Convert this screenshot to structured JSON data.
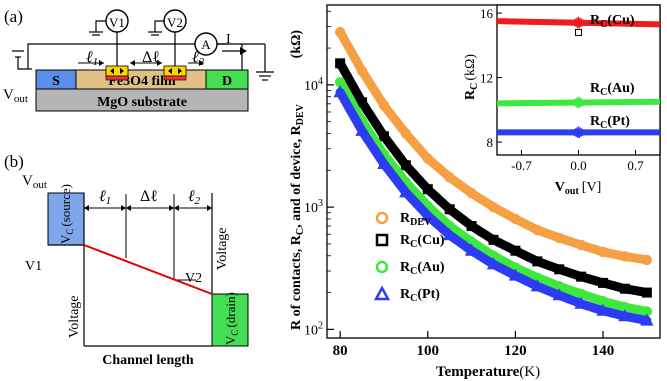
{
  "panel_a": {
    "label": "(a)",
    "v1": "V1",
    "v2": "V2",
    "ammeter": "A",
    "current": "I",
    "source": "S",
    "drain": "D",
    "vout": "V",
    "vout_sub": "out",
    "l1": "ℓ",
    "l1_sub": "1",
    "dl": "Δℓ",
    "l2": "ℓ",
    "l2_sub": "2",
    "film": "Fe3O4 film",
    "substrate": "MgO substrate"
  },
  "panel_b": {
    "label": "(b)",
    "vout": "V",
    "vout_sub": "out",
    "l1": "ℓ",
    "l1_sub": "1",
    "dl": "Δℓ",
    "l2": "ℓ",
    "l2_sub": "2",
    "vc_source": "V",
    "vc_source_sub": "C",
    "vc_source_note": "(source)",
    "vc_drain": "V",
    "vc_drain_sub": "C",
    "vc_drain_note": "(drain)",
    "v1": "V1",
    "v2": "V2",
    "voltage_left": "Voltage",
    "voltage_right": "Voltage",
    "xlabel": "Channel length"
  },
  "chart_data": [
    {
      "type": "line",
      "ylabel": "R of contacts, R",
      "ylabel_sub1": "C",
      "ylabel_mid": ", and of device, R",
      "ylabel_sub2": "DEV",
      "unit": "(kΩ)",
      "xlabel": "Temperature",
      "xunit": "(K)",
      "yscale": "log",
      "xlim": [
        77,
        153
      ],
      "ylim": [
        85,
        45000
      ],
      "xticks": [
        80,
        100,
        120,
        140
      ],
      "yticks": [
        {
          "value": 100,
          "base": "10",
          "exp": "2"
        },
        {
          "value": 1000,
          "base": "10",
          "exp": "3"
        },
        {
          "value": 10000,
          "base": "10",
          "exp": "4"
        }
      ],
      "legend_position": "center-right",
      "series": [
        {
          "name": "R",
          "sub": "DEV",
          "marker": "circle",
          "color": "#f5a143",
          "x": [
            80,
            85,
            90,
            95,
            100,
            105,
            110,
            115,
            120,
            125,
            130,
            135,
            140,
            145,
            150
          ],
          "y": [
            27000,
            13000,
            6800,
            4000,
            2500,
            1750,
            1300,
            1000,
            800,
            650,
            560,
            490,
            430,
            395,
            370
          ]
        },
        {
          "name": "R",
          "sub": "C",
          "suffix": "(Cu)",
          "marker": "square",
          "color": "#000000",
          "x": [
            80,
            85,
            90,
            95,
            100,
            105,
            110,
            115,
            120,
            125,
            130,
            135,
            140,
            145,
            150
          ],
          "y": [
            15000,
            7200,
            3800,
            2200,
            1400,
            960,
            700,
            540,
            440,
            360,
            310,
            270,
            240,
            215,
            200
          ]
        },
        {
          "name": "R",
          "sub": "C",
          "suffix": "(Au)",
          "marker": "circle",
          "color": "#3fe83f",
          "x": [
            80,
            85,
            90,
            95,
            100,
            105,
            110,
            115,
            120,
            125,
            130,
            135,
            140,
            145,
            150
          ],
          "y": [
            10500,
            5100,
            2700,
            1600,
            1020,
            700,
            520,
            400,
            320,
            265,
            225,
            195,
            170,
            152,
            140
          ]
        },
        {
          "name": "R",
          "sub": "C",
          "suffix": "(Pt)",
          "marker": "triangle",
          "color": "#2b3cf2",
          "x": [
            80,
            85,
            90,
            95,
            100,
            105,
            110,
            115,
            120,
            125,
            130,
            135,
            140,
            145,
            150
          ],
          "y": [
            8700,
            4200,
            2250,
            1320,
            850,
            590,
            440,
            340,
            275,
            225,
            190,
            162,
            142,
            128,
            118
          ]
        }
      ]
    },
    {
      "type": "scatter",
      "ylabel": "R",
      "ylabel_sub": "C",
      "yunit": "(kΩ)",
      "xlabel": "V",
      "xlabel_sub": "out",
      "xunit": "[V]",
      "xlim": [
        -1.0,
        1.0
      ],
      "ylim": [
        7.2,
        16.5
      ],
      "xticks": [
        {
          "value": -0.7,
          "label": "-0.7"
        },
        {
          "value": 0.0,
          "label": "0.0"
        },
        {
          "value": 0.7,
          "label": "0.7"
        }
      ],
      "yticks": [
        8,
        12,
        16
      ],
      "series": [
        {
          "name": "R",
          "sub": "C",
          "suffix": "(Cu)",
          "color": "#ee1c1c",
          "x": [
            -1.0,
            1.0
          ],
          "y": [
            15.5,
            15.3
          ]
        },
        {
          "name": "R",
          "sub": "C",
          "suffix": "(Au)",
          "color": "#3fe83f",
          "x": [
            -1.0,
            1.0
          ],
          "y": [
            10.4,
            10.5
          ]
        },
        {
          "name": "R",
          "sub": "C",
          "suffix": "(Pt)",
          "color": "#2b3cf2",
          "x": [
            -1.0,
            1.0
          ],
          "y": [
            8.6,
            8.6
          ]
        }
      ]
    }
  ],
  "colors": {
    "source_pad": "#5a8ee8",
    "drain_pad": "#44dd55",
    "film": "#e0c087",
    "substrate": "#b5b5b5",
    "probe_yellow": "#ffd400",
    "probe_red": "#e83333",
    "slope_line": "#e00000"
  }
}
